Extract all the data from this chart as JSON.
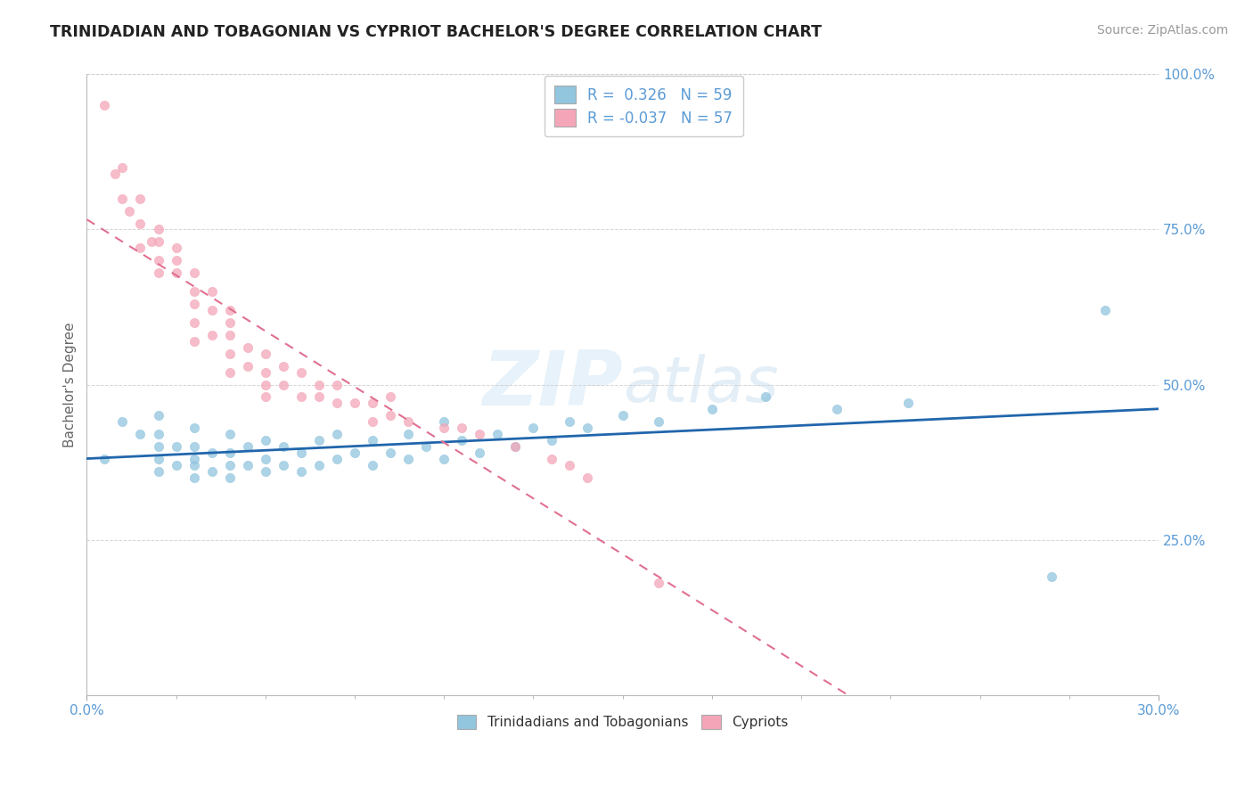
{
  "title": "TRINIDADIAN AND TOBAGONIAN VS CYPRIOT BACHELOR'S DEGREE CORRELATION CHART",
  "source_text": "Source: ZipAtlas.com",
  "ylabel": "Bachelor's Degree",
  "xlim": [
    0.0,
    0.3
  ],
  "ylim": [
    0.0,
    1.0
  ],
  "legend_R1": "0.326",
  "legend_N1": "59",
  "legend_R2": "-0.037",
  "legend_N2": "57",
  "color_blue": "#92c5de",
  "color_pink": "#f4a6b8",
  "color_blue_line": "#2166ac",
  "color_pink_line": "#e07090",
  "watermark_zip": "ZIP",
  "watermark_atlas": "atlas",
  "blue_scatter_x": [
    0.005,
    0.01,
    0.015,
    0.02,
    0.02,
    0.02,
    0.02,
    0.02,
    0.025,
    0.025,
    0.03,
    0.03,
    0.03,
    0.03,
    0.03,
    0.035,
    0.035,
    0.04,
    0.04,
    0.04,
    0.04,
    0.045,
    0.045,
    0.05,
    0.05,
    0.05,
    0.055,
    0.055,
    0.06,
    0.06,
    0.065,
    0.065,
    0.07,
    0.07,
    0.075,
    0.08,
    0.08,
    0.085,
    0.09,
    0.09,
    0.095,
    0.1,
    0.1,
    0.105,
    0.11,
    0.115,
    0.12,
    0.125,
    0.13,
    0.135,
    0.14,
    0.15,
    0.16,
    0.175,
    0.19,
    0.21,
    0.23,
    0.27,
    0.285
  ],
  "blue_scatter_y": [
    0.38,
    0.44,
    0.42,
    0.36,
    0.38,
    0.4,
    0.42,
    0.45,
    0.37,
    0.4,
    0.35,
    0.37,
    0.38,
    0.4,
    0.43,
    0.36,
    0.39,
    0.35,
    0.37,
    0.39,
    0.42,
    0.37,
    0.4,
    0.36,
    0.38,
    0.41,
    0.37,
    0.4,
    0.36,
    0.39,
    0.37,
    0.41,
    0.38,
    0.42,
    0.39,
    0.37,
    0.41,
    0.39,
    0.38,
    0.42,
    0.4,
    0.38,
    0.44,
    0.41,
    0.39,
    0.42,
    0.4,
    0.43,
    0.41,
    0.44,
    0.43,
    0.45,
    0.44,
    0.46,
    0.48,
    0.46,
    0.47,
    0.19,
    0.62
  ],
  "pink_scatter_x": [
    0.005,
    0.008,
    0.01,
    0.01,
    0.012,
    0.015,
    0.015,
    0.015,
    0.018,
    0.02,
    0.02,
    0.02,
    0.02,
    0.025,
    0.025,
    0.025,
    0.03,
    0.03,
    0.03,
    0.03,
    0.03,
    0.035,
    0.035,
    0.035,
    0.04,
    0.04,
    0.04,
    0.04,
    0.04,
    0.045,
    0.045,
    0.05,
    0.05,
    0.05,
    0.05,
    0.055,
    0.055,
    0.06,
    0.06,
    0.065,
    0.065,
    0.07,
    0.07,
    0.075,
    0.08,
    0.08,
    0.085,
    0.085,
    0.09,
    0.1,
    0.105,
    0.11,
    0.12,
    0.13,
    0.135,
    0.14,
    0.16
  ],
  "pink_scatter_y": [
    0.95,
    0.84,
    0.8,
    0.85,
    0.78,
    0.76,
    0.72,
    0.8,
    0.73,
    0.68,
    0.7,
    0.73,
    0.75,
    0.7,
    0.72,
    0.68,
    0.63,
    0.65,
    0.68,
    0.6,
    0.57,
    0.58,
    0.62,
    0.65,
    0.55,
    0.58,
    0.6,
    0.62,
    0.52,
    0.53,
    0.56,
    0.5,
    0.52,
    0.55,
    0.48,
    0.5,
    0.53,
    0.48,
    0.52,
    0.48,
    0.5,
    0.47,
    0.5,
    0.47,
    0.47,
    0.44,
    0.45,
    0.48,
    0.44,
    0.43,
    0.43,
    0.42,
    0.4,
    0.38,
    0.37,
    0.35,
    0.18
  ]
}
